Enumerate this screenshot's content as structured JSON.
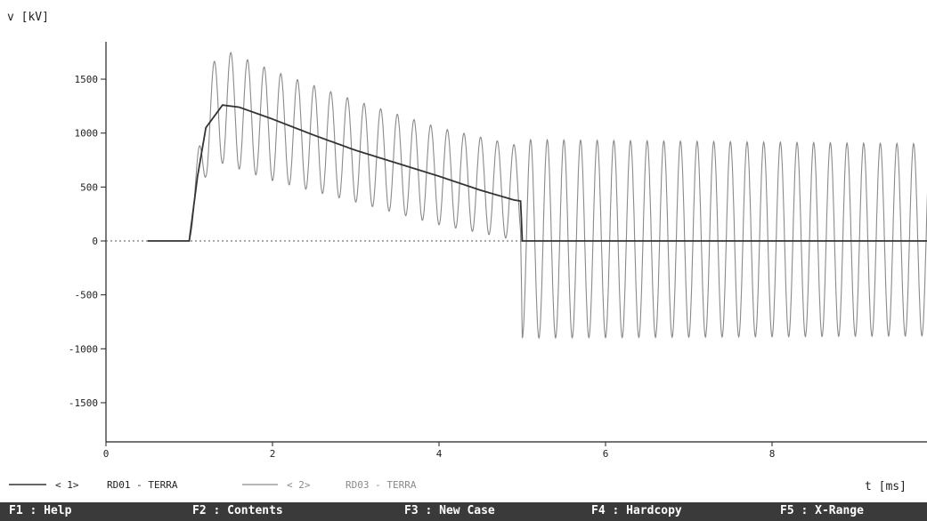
{
  "chart_data": {
    "type": "line",
    "ylabel": "v [kV]",
    "xlabel": "t [ms]",
    "xlim": [
      0,
      10
    ],
    "ylim": [
      -1850,
      1850
    ],
    "xticks": [
      0,
      2,
      4,
      6,
      8
    ],
    "xtick_labels": [
      "0",
      "2",
      "4",
      "6",
      "8"
    ],
    "yticks": [
      1500,
      1000,
      500,
      0,
      -500,
      -1000,
      -1500
    ],
    "ytick_labels": [
      "1500",
      "1000",
      "500",
      "0",
      "-500",
      "-1000",
      "-1500"
    ],
    "grid": false,
    "legend_position": "bottom-left",
    "series": [
      {
        "name": "RD01 - TERRA",
        "legend_marker": "< 1>",
        "color": "#333333",
        "description_points_x": [
          0.5,
          1.0,
          1.1,
          1.2,
          1.4,
          1.6,
          2.0,
          2.5,
          3.0,
          3.5,
          4.0,
          4.5,
          4.9,
          4.98,
          5.0,
          10.0
        ],
        "description_points_y": [
          0,
          0,
          600,
          1050,
          1260,
          1240,
          1130,
          980,
          840,
          720,
          600,
          470,
          380,
          370,
          0,
          0
        ]
      },
      {
        "name": "RD03 - TERRA",
        "legend_marker": "< 2>",
        "color": "#8a8a8a",
        "oscillation_period_ms": 0.2,
        "envelope_x": [
          1.0,
          1.2,
          1.4,
          2.0,
          3.0,
          4.0,
          4.98,
          5.0,
          10.0
        ],
        "envelope_upper_y": [
          0,
          1550,
          1780,
          1580,
          1300,
          1050,
          880,
          940,
          900
        ],
        "envelope_lower_y": [
          0,
          600,
          720,
          560,
          360,
          150,
          0,
          -900,
          -880
        ]
      }
    ]
  },
  "menu": [
    {
      "key": "F1",
      "label": "Help"
    },
    {
      "key": "F2",
      "label": "Contents"
    },
    {
      "key": "F3",
      "label": "New Case"
    },
    {
      "key": "F4",
      "label": "Hardcopy"
    },
    {
      "key": "F5",
      "label": "X-Range"
    }
  ]
}
